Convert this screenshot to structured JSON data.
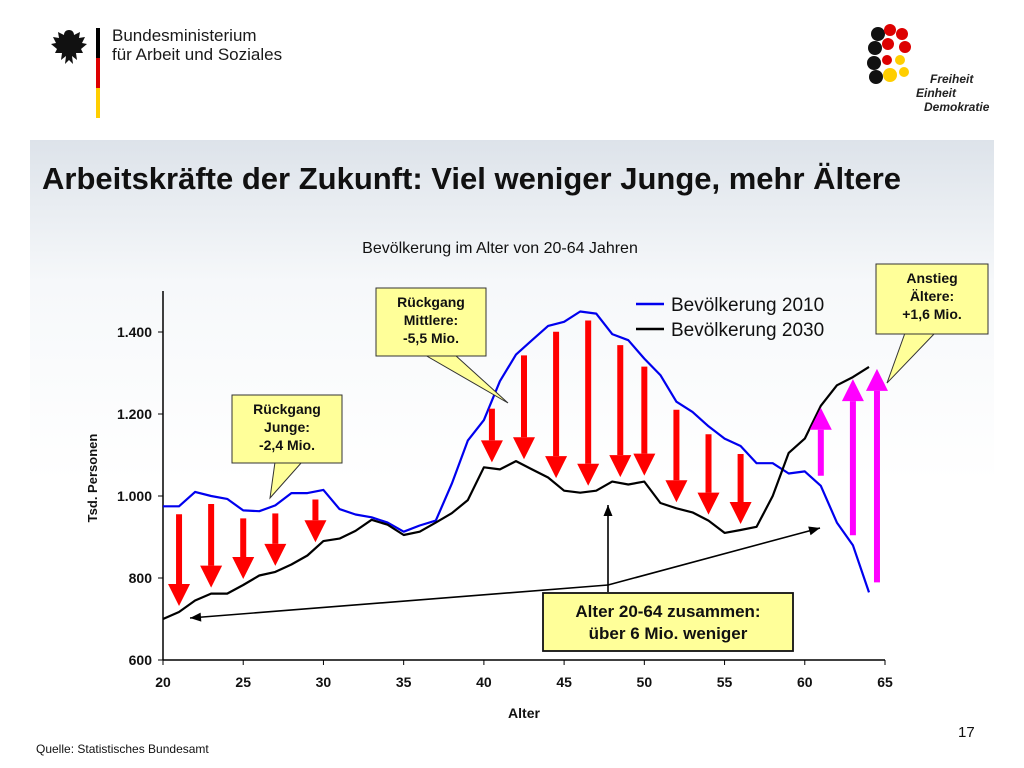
{
  "header": {
    "ministry_line1": "Bundesministerium",
    "ministry_line2": "für Arbeit und Soziales",
    "logo_lines": [
      "Freiheit",
      "Einheit",
      "Demokratie"
    ]
  },
  "slide": {
    "title": "Arbeitskräfte der Zukunft: Viel weniger Junge, mehr Ältere",
    "source": "Quelle: Statistisches Bundesamt",
    "page_number": "17"
  },
  "colors": {
    "series_2010": "#0000ee",
    "series_2030": "#000000",
    "arrow_down": "#ff0000",
    "arrow_up": "#ff00ff",
    "callout_fill": "#ffff99"
  },
  "chart_data": {
    "type": "line",
    "title": "Bevölkerung im Alter von 20-64 Jahren",
    "xlabel": "Alter",
    "ylabel": "Tsd. Personen",
    "xlim": [
      20,
      65
    ],
    "ylim": [
      600,
      1500
    ],
    "xticks": [
      20,
      25,
      30,
      35,
      40,
      45,
      50,
      55,
      60,
      65
    ],
    "xtick_labels": [
      "20",
      "25",
      "30",
      "35",
      "40",
      "45",
      "50",
      "55",
      "60",
      "65"
    ],
    "yticks": [
      600,
      800,
      1000,
      1200,
      1400
    ],
    "ytick_labels": [
      "600",
      "800",
      "1.000",
      "1.200",
      "1.400"
    ],
    "legend_position": "top-right",
    "grid": false,
    "x": [
      20,
      21,
      22,
      23,
      24,
      25,
      26,
      27,
      28,
      29,
      30,
      31,
      32,
      33,
      34,
      35,
      36,
      37,
      38,
      39,
      40,
      41,
      42,
      43,
      44,
      45,
      46,
      47,
      48,
      49,
      50,
      51,
      52,
      53,
      54,
      55,
      56,
      57,
      58,
      59,
      60,
      61,
      62,
      63,
      64
    ],
    "series": [
      {
        "name": "Bevölkerung 2010",
        "values": [
          975,
          975,
          1010,
          1000,
          993,
          965,
          963,
          977,
          1007,
          1007,
          1015,
          968,
          955,
          948,
          935,
          913,
          928,
          940,
          1030,
          1135,
          1185,
          1280,
          1345,
          1380,
          1415,
          1425,
          1450,
          1445,
          1395,
          1380,
          1335,
          1295,
          1230,
          1205,
          1170,
          1140,
          1122,
          1080,
          1080,
          1055,
          1060,
          1025,
          935,
          880,
          765
        ]
      },
      {
        "name": "Bevölkerung 2030",
        "values": [
          700,
          717,
          745,
          762,
          762,
          783,
          806,
          815,
          833,
          855,
          890,
          896,
          915,
          942,
          930,
          905,
          913,
          935,
          958,
          990,
          1070,
          1065,
          1085,
          1065,
          1045,
          1013,
          1008,
          1013,
          1035,
          1028,
          1035,
          983,
          970,
          960,
          940,
          910,
          917,
          925,
          1000,
          1105,
          1140,
          1220,
          1270,
          1290,
          1315
        ]
      }
    ],
    "annotations": [
      {
        "text": [
          "Rückgang",
          "Junge:",
          "-2,4 Mio."
        ]
      },
      {
        "text": [
          "Rückgang",
          "Mittlere:",
          "-5,5 Mio."
        ]
      },
      {
        "text": [
          "Anstieg",
          "Ältere:",
          "+1,6 Mio."
        ]
      },
      {
        "text": [
          "Alter 20-64 zusammen:",
          "über 6 Mio. weniger"
        ]
      }
    ],
    "down_arrow_ages": [
      21,
      23,
      25,
      27,
      29.5,
      40.5,
      42.5,
      44.5,
      46.5,
      48.5,
      50,
      52,
      54,
      56
    ],
    "up_arrow_ages": [
      61,
      63,
      64.5
    ]
  }
}
